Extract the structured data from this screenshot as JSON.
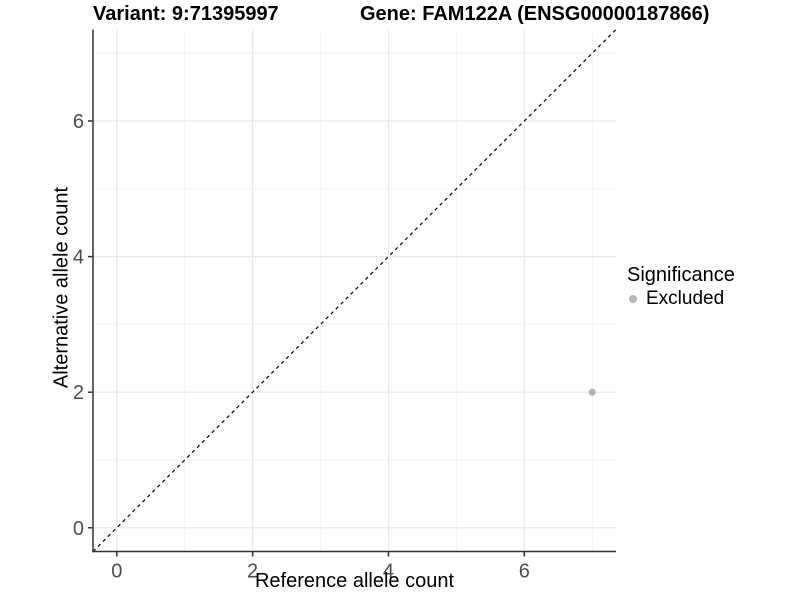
{
  "titles": {
    "variant": "Variant: 9:71395997",
    "gene": "Gene: FAM122A (ENSG00000187866)"
  },
  "chart_data": {
    "type": "scatter",
    "title_left": "Variant: 9:71395997",
    "title_right": "Gene: FAM122A (ENSG00000187866)",
    "xlabel": "Reference allele count",
    "ylabel": "Alternative allele count",
    "xlim": [
      -0.35,
      7.35
    ],
    "ylim": [
      -0.35,
      7.35
    ],
    "x_ticks": [
      0,
      2,
      4,
      6
    ],
    "y_ticks": [
      0,
      2,
      4,
      6
    ],
    "x_minor_gridlines": [
      1,
      3,
      5,
      7
    ],
    "y_minor_gridlines": [
      1,
      3,
      5,
      7
    ],
    "grid": true,
    "points": [
      {
        "x": 7,
        "y": 2,
        "significance": "Excluded"
      }
    ],
    "reference_line": {
      "type": "diagonal-identity",
      "style": "dashed",
      "from": [
        -0.35,
        -0.35
      ],
      "to": [
        7.35,
        7.35
      ],
      "color": "#000000"
    },
    "legend": {
      "position": "right",
      "title": "Significance",
      "entries": [
        {
          "label": "Excluded",
          "color": "#b5b5b5"
        }
      ]
    },
    "colors": {
      "point": "#b5b5b5",
      "major_grid": "#e9e9e9",
      "minor_grid": "#f4f4f4",
      "axis_line": "#333333",
      "tick_text": "#4d4d4d",
      "background": "#ffffff"
    }
  }
}
